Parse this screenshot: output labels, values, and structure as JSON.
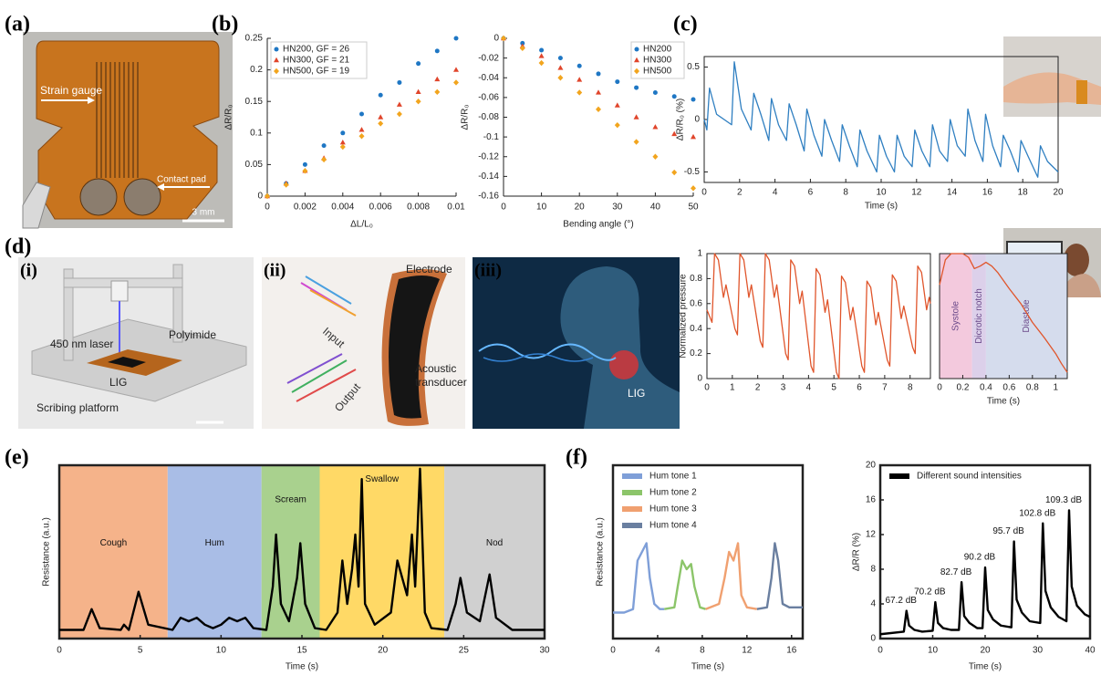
{
  "panel_labels": {
    "a": "(a)",
    "b": "(b)",
    "c": "(c)",
    "d": "(d)",
    "d_i": "(i)",
    "d_ii": "(ii)",
    "d_iii": "(iii)",
    "e": "(e)",
    "f": "(f)"
  },
  "photos": {
    "a": {
      "strain_gauge": "Strain gauge",
      "contact_pad": "Contact pad",
      "scale_bar": "3 mm"
    },
    "d_i": {
      "laser": "450 nm laser",
      "polyimide": "Polyimide",
      "lig": "LIG",
      "platform": "Scribing platform"
    },
    "d_ii": {
      "input": "Input",
      "electrode": "Electrode",
      "output": "Output",
      "transducer_1": "Acoustic",
      "transducer_2": "transducer"
    },
    "d_iii": {
      "lig": "LIG"
    }
  },
  "chart_data": [
    {
      "type": "scatter",
      "xlabel": "ΔL/L₀",
      "ylabel": "ΔR/R₀",
      "x": [
        0,
        0.001,
        0.002,
        0.003,
        0.004,
        0.005,
        0.006,
        0.007,
        0.008,
        0.009,
        0.01
      ],
      "xlim": [
        0,
        0.01
      ],
      "xticks": [
        0,
        0.002,
        0.004,
        0.006,
        0.008,
        0.01
      ],
      "ylim": [
        0,
        0.25
      ],
      "yticks": [
        0,
        0.05,
        0.1,
        0.15,
        0.2,
        0.25
      ],
      "legend": "upper left",
      "series": [
        {
          "name": "HN200, GF = 26",
          "color": "#1f77c4",
          "marker": "circle",
          "values": [
            0,
            0.02,
            0.05,
            0.08,
            0.1,
            0.13,
            0.16,
            0.18,
            0.21,
            0.23,
            0.25
          ]
        },
        {
          "name": "HN300, GF = 21",
          "color": "#e0452b",
          "marker": "triangle",
          "values": [
            0,
            0.02,
            0.04,
            0.06,
            0.085,
            0.105,
            0.125,
            0.145,
            0.165,
            0.185,
            0.2
          ]
        },
        {
          "name": "HN500, GF = 19",
          "color": "#f2a51e",
          "marker": "diamond",
          "values": [
            0,
            0.018,
            0.04,
            0.058,
            0.078,
            0.095,
            0.115,
            0.13,
            0.15,
            0.165,
            0.18
          ]
        }
      ]
    },
    {
      "type": "scatter",
      "xlabel": "Bending angle (°)",
      "ylabel": "ΔR/R₀",
      "x": [
        0,
        5,
        10,
        15,
        20,
        25,
        30,
        35,
        40,
        45,
        50
      ],
      "xlim": [
        0,
        50
      ],
      "xticks": [
        0,
        10,
        20,
        30,
        40,
        50
      ],
      "ylim": [
        -0.16,
        0
      ],
      "yticks": [
        0,
        -0.02,
        -0.04,
        -0.06,
        -0.08,
        -0.1,
        -0.12,
        -0.14,
        -0.16
      ],
      "legend": "upper right",
      "series": [
        {
          "name": "HN200",
          "color": "#1f77c4",
          "marker": "circle",
          "values": [
            0,
            -0.005,
            -0.012,
            -0.02,
            -0.028,
            -0.036,
            -0.044,
            -0.05,
            -0.055,
            -0.059,
            -0.062
          ]
        },
        {
          "name": "HN300",
          "color": "#e0452b",
          "marker": "triangle",
          "values": [
            0,
            -0.008,
            -0.018,
            -0.03,
            -0.042,
            -0.055,
            -0.068,
            -0.08,
            -0.09,
            -0.097,
            -0.1
          ]
        },
        {
          "name": "HN500",
          "color": "#f2a51e",
          "marker": "diamond",
          "values": [
            0,
            -0.01,
            -0.025,
            -0.04,
            -0.055,
            -0.072,
            -0.088,
            -0.105,
            -0.12,
            -0.136,
            -0.152
          ]
        }
      ]
    },
    {
      "type": "line",
      "xlabel": "Time (s)",
      "ylabel": "ΔR/R₀ (%)",
      "color": "#2f7fc1",
      "x": [
        0,
        0.15,
        0.3,
        0.7,
        1.55,
        1.7,
        2.1,
        2.65,
        2.8,
        3.2,
        3.65,
        3.8,
        4.2,
        4.65,
        4.8,
        5.2,
        5.65,
        5.8,
        6.2,
        6.65,
        6.8,
        7.2,
        7.65,
        7.8,
        8.2,
        8.65,
        8.8,
        9.2,
        9.75,
        9.9,
        10.3,
        10.75,
        10.9,
        11.3,
        11.75,
        11.9,
        12.3,
        12.75,
        12.9,
        13.3,
        13.75,
        13.9,
        14.3,
        14.75,
        14.9,
        15.3,
        15.75,
        15.9,
        16.3,
        16.75,
        16.9,
        17.3,
        17.75,
        17.9,
        18.3,
        18.85,
        19,
        19.4,
        20
      ],
      "values": [
        0,
        -0.1,
        0.3,
        0.05,
        -0.05,
        0.55,
        0.1,
        -0.1,
        0.25,
        0.05,
        -0.2,
        0.2,
        -0.05,
        -0.2,
        0.15,
        -0.05,
        -0.3,
        0.1,
        -0.15,
        -0.35,
        0,
        -0.2,
        -0.4,
        -0.05,
        -0.25,
        -0.45,
        -0.1,
        -0.3,
        -0.5,
        -0.15,
        -0.35,
        -0.5,
        -0.15,
        -0.35,
        -0.45,
        -0.1,
        -0.3,
        -0.45,
        -0.05,
        -0.3,
        -0.4,
        0,
        -0.25,
        -0.35,
        0.1,
        -0.2,
        -0.4,
        0.05,
        -0.25,
        -0.45,
        -0.15,
        -0.3,
        -0.5,
        -0.2,
        -0.35,
        -0.55,
        -0.25,
        -0.4,
        -0.5
      ],
      "xlim": [
        0,
        20
      ],
      "xticks": [
        0,
        2,
        4,
        6,
        8,
        10,
        12,
        14,
        16,
        18,
        20
      ],
      "ylim": [
        -0.6,
        0.6
      ],
      "yticks": [
        -0.5,
        0,
        0.5
      ]
    },
    {
      "type": "line",
      "ylabel": "Normalized pressure",
      "color": "#e0552b",
      "x": [
        0,
        0.2,
        0.3,
        0.45,
        0.65,
        0.75,
        1.1,
        1.2,
        1.3,
        1.45,
        1.65,
        1.75,
        2.1,
        2.2,
        2.3,
        2.45,
        2.65,
        2.75,
        3.1,
        3.2,
        3.3,
        3.45,
        3.65,
        3.75,
        4.1,
        4.2,
        4.3,
        4.45,
        4.65,
        4.75,
        5.1,
        5.2,
        5.3,
        5.45,
        5.65,
        5.75,
        6.1,
        6.2,
        6.3,
        6.45,
        6.65,
        6.75,
        7.1,
        7.2,
        7.3,
        7.45,
        7.65,
        7.75,
        8.1,
        8.2,
        8.3,
        8.45,
        8.65,
        8.75,
        8.8
      ],
      "values": [
        0.55,
        0.45,
        1,
        0.95,
        0.65,
        0.75,
        0.4,
        0.35,
        1,
        0.95,
        0.65,
        0.75,
        0.3,
        0.25,
        1,
        0.95,
        0.65,
        0.75,
        0.2,
        0.15,
        0.95,
        0.9,
        0.6,
        0.7,
        0.1,
        0.05,
        0.88,
        0.83,
        0.53,
        0.63,
        0.05,
        0,
        0.82,
        0.77,
        0.47,
        0.57,
        0.1,
        0.05,
        0.78,
        0.73,
        0.43,
        0.53,
        0.15,
        0.1,
        0.83,
        0.78,
        0.48,
        0.58,
        0.25,
        0.2,
        0.9,
        0.85,
        0.55,
        0.65,
        0.6
      ],
      "xlim": [
        0,
        8.8
      ],
      "xticks": [
        0,
        1,
        2,
        3,
        4,
        5,
        6,
        7,
        8
      ],
      "ylim": [
        0,
        1
      ],
      "yticks": [
        0,
        0.2,
        0.4,
        0.6,
        0.8,
        1
      ]
    },
    {
      "type": "line",
      "xlabel": "Time (s)",
      "color": "#e0552b",
      "x": [
        0,
        0.05,
        0.1,
        0.15,
        0.2,
        0.25,
        0.3,
        0.35,
        0.4,
        0.45,
        0.5,
        0.6,
        0.7,
        0.8,
        0.9,
        1,
        1.05,
        1.1
      ],
      "values": [
        0.75,
        0.95,
        1,
        1,
        1,
        0.97,
        0.88,
        0.9,
        0.93,
        0.9,
        0.85,
        0.72,
        0.6,
        0.45,
        0.33,
        0.2,
        0.12,
        0.05
      ],
      "xlim": [
        0,
        1.1
      ],
      "xticks": [
        0,
        0.2,
        0.4,
        0.6,
        0.8,
        1
      ],
      "ylim": [
        0,
        1
      ],
      "regions": [
        {
          "label": "Systole",
          "x": [
            0,
            0.28
          ],
          "color": "#f3c9dd"
        },
        {
          "label": "Dicrotic notch",
          "x": [
            0.28,
            0.4
          ],
          "color": "#dcd0ea"
        },
        {
          "label": "Diastole",
          "x": [
            0.4,
            1.1
          ],
          "color": "#d5dced"
        }
      ]
    },
    {
      "type": "line",
      "xlabel": "Time (s)",
      "ylabel": "Resistance (a.u.)",
      "color": "#000000",
      "x": [
        0,
        1.5,
        2,
        2.5,
        3.8,
        4,
        4.3,
        4.9,
        5.5,
        7,
        7.5,
        8,
        8.5,
        9,
        9.5,
        10,
        10.5,
        11,
        11.5,
        12,
        12.8,
        13.2,
        13.4,
        13.7,
        14.2,
        14.7,
        14.9,
        15.2,
        15.8,
        16.5,
        17.2,
        17.5,
        17.8,
        18.1,
        18.3,
        18.5,
        18.7,
        18.9,
        19.5,
        20.5,
        20.9,
        21.2,
        21.5,
        21.8,
        22,
        22.3,
        22.6,
        23,
        24,
        24.5,
        24.8,
        25.2,
        26,
        26.6,
        27,
        28,
        30
      ],
      "values": [
        0.05,
        0.05,
        0.17,
        0.06,
        0.05,
        0.08,
        0.05,
        0.27,
        0.08,
        0.05,
        0.12,
        0.1,
        0.12,
        0.08,
        0.06,
        0.08,
        0.12,
        0.1,
        0.12,
        0.06,
        0.05,
        0.3,
        0.6,
        0.2,
        0.1,
        0.35,
        0.55,
        0.2,
        0.06,
        0.05,
        0.15,
        0.45,
        0.2,
        0.4,
        0.6,
        0.3,
        0.92,
        0.2,
        0.08,
        0.15,
        0.45,
        0.35,
        0.25,
        0.6,
        0.3,
        0.98,
        0.15,
        0.06,
        0.05,
        0.2,
        0.35,
        0.15,
        0.1,
        0.37,
        0.12,
        0.05,
        0.05
      ],
      "xlim": [
        0,
        30
      ],
      "xticks": [
        0,
        5,
        10,
        15,
        20,
        25,
        30
      ],
      "ylim": [
        0,
        1
      ],
      "regions": [
        {
          "label": "Cough",
          "x": [
            0,
            6.7
          ],
          "color": "#f5b38a"
        },
        {
          "label": "Hum",
          "x": [
            6.7,
            12.5
          ],
          "color": "#a9bde6"
        },
        {
          "label": "Scream",
          "x": [
            12.5,
            16.1
          ],
          "color": "#a9d18e"
        },
        {
          "label": "Swallow",
          "x": [
            16.1,
            23.8
          ],
          "color": "#ffd966"
        },
        {
          "label": "Nod",
          "x": [
            23.8,
            30
          ],
          "color": "#d0d0d0"
        }
      ]
    },
    {
      "type": "line",
      "xlabel": "Time (s)",
      "ylabel": "Resistance (a.u.)",
      "xlim": [
        0,
        17
      ],
      "xticks": [
        0,
        4,
        8,
        12,
        16
      ],
      "ylim": [
        0,
        1
      ],
      "legend": "upper left",
      "series": [
        {
          "name": "Hum tone 1",
          "color": "#7f9fd8",
          "x": [
            0,
            1,
            1.8,
            2.2,
            2.6,
            3,
            3.3,
            3.7,
            4.2,
            4.6
          ],
          "values": [
            0.15,
            0.15,
            0.17,
            0.45,
            0.5,
            0.55,
            0.35,
            0.2,
            0.17,
            0.17
          ]
        },
        {
          "name": "Hum tone 2",
          "color": "#8cc56a",
          "x": [
            4.6,
            5.5,
            5.8,
            6.2,
            6.6,
            7,
            7.3,
            7.8,
            8.3
          ],
          "values": [
            0.17,
            0.18,
            0.3,
            0.45,
            0.4,
            0.43,
            0.3,
            0.18,
            0.17
          ]
        },
        {
          "name": "Hum tone 3",
          "color": "#f0a070",
          "x": [
            8.3,
            9.5,
            10,
            10.4,
            10.8,
            11.2,
            11.5,
            12,
            12.9
          ],
          "values": [
            0.17,
            0.2,
            0.35,
            0.5,
            0.45,
            0.55,
            0.25,
            0.18,
            0.17
          ]
        },
        {
          "name": "Hum tone 4",
          "color": "#6a7fa0",
          "x": [
            12.9,
            13.8,
            14.2,
            14.5,
            14.8,
            15.2,
            15.8,
            17
          ],
          "values": [
            0.17,
            0.18,
            0.35,
            0.55,
            0.45,
            0.2,
            0.18,
            0.18
          ]
        }
      ]
    },
    {
      "type": "line",
      "xlabel": "Time (s)",
      "ylabel": "ΔR/R (%)",
      "name": "Different sound intensities",
      "color": "#000000",
      "legend": "upper left",
      "x": [
        0,
        4.5,
        5,
        5.5,
        6.5,
        8,
        10,
        10.5,
        11,
        12,
        13.5,
        15,
        15.5,
        16,
        17,
        18.5,
        19.5,
        20,
        20.5,
        21.5,
        23,
        25,
        25.5,
        26,
        27,
        28.5,
        30.5,
        31,
        31.5,
        32.5,
        34,
        35.5,
        36,
        36.5,
        37.5,
        39,
        40
      ],
      "values": [
        0.5,
        0.8,
        3.2,
        1.5,
        1,
        0.8,
        0.9,
        4.2,
        1.8,
        1.2,
        1,
        1,
        6.5,
        2.6,
        1.8,
        1.2,
        1.2,
        8.2,
        3.3,
        2.2,
        1.5,
        1.3,
        11.2,
        4.5,
        3,
        2,
        1.8,
        13.3,
        5.5,
        3.6,
        2.5,
        2,
        14.8,
        6,
        3.8,
        2.8,
        2.5
      ],
      "xlim": [
        0,
        40
      ],
      "xticks": [
        0,
        10,
        20,
        30,
        40
      ],
      "ylim": [
        0,
        20
      ],
      "yticks": [
        0,
        4,
        8,
        12,
        16,
        20
      ],
      "annotations": [
        {
          "text": "67.2 dB",
          "x": 5
        },
        {
          "text": "70.2 dB",
          "x": 10.5
        },
        {
          "text": "82.7 dB",
          "x": 15.5
        },
        {
          "text": "90.2 dB",
          "x": 20
        },
        {
          "text": "95.7 dB",
          "x": 25.5
        },
        {
          "text": "102.8 dB",
          "x": 31
        },
        {
          "text": "109.3 dB",
          "x": 36
        }
      ]
    }
  ]
}
